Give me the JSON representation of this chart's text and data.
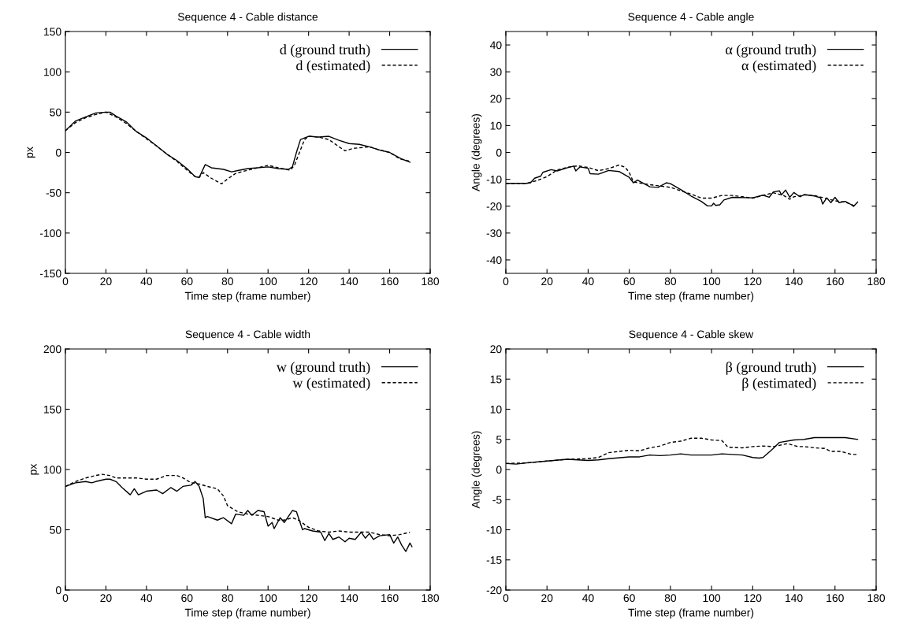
{
  "chart_data": [
    {
      "type": "line",
      "title": "Sequence 4 - Cable distance",
      "xlabel": "Time step (frame number)",
      "ylabel": "px",
      "xlim": [
        0,
        180
      ],
      "xticks": [
        0,
        20,
        40,
        60,
        80,
        100,
        120,
        140,
        160,
        180
      ],
      "ylim": [
        -150,
        150
      ],
      "yticks": [
        -150,
        -100,
        -50,
        0,
        50,
        100,
        150
      ],
      "legend": "top right",
      "grid": false,
      "series": [
        {
          "name": "d (ground truth)",
          "color": "#000000",
          "line_style": "solid",
          "x": [
            0,
            5,
            10,
            15,
            20,
            22,
            25,
            30,
            35,
            40,
            45,
            50,
            55,
            60,
            64,
            66,
            69,
            72,
            78,
            82,
            86,
            90,
            100,
            105,
            110,
            112,
            114,
            116,
            120,
            125,
            130,
            135,
            140,
            145,
            150,
            155,
            160,
            165,
            170
          ],
          "values": [
            27,
            39,
            44,
            49,
            50,
            50,
            45,
            38,
            26,
            18,
            8,
            -2,
            -10,
            -20,
            -30,
            -31,
            -15,
            -19,
            -21,
            -24,
            -22,
            -20,
            -18,
            -20,
            -21,
            -18,
            0,
            16,
            20,
            19,
            20,
            15,
            11,
            10,
            7,
            3,
            0,
            -7,
            -12
          ]
        },
        {
          "name": "d (estimated)",
          "color": "#000000",
          "line_style": "dashed",
          "x": [
            0,
            5,
            10,
            15,
            20,
            25,
            30,
            35,
            40,
            45,
            50,
            55,
            60,
            64,
            66,
            68,
            72,
            77,
            80,
            84,
            90,
            100,
            105,
            111,
            113,
            118,
            120,
            125,
            130,
            135,
            138,
            142,
            150,
            155,
            160,
            165,
            170
          ],
          "values": [
            27,
            37,
            43,
            47,
            50,
            44,
            36,
            26,
            17,
            8,
            -2,
            -11,
            -22,
            -30,
            -31,
            -25,
            -32,
            -39,
            -33,
            -26,
            -22,
            -16,
            -19,
            -22,
            -16,
            16,
            20,
            19,
            16,
            7,
            2,
            5,
            7,
            3,
            0,
            -8,
            -11
          ]
        }
      ]
    },
    {
      "type": "line",
      "title": "Sequence 4 - Cable angle",
      "xlabel": "Time step (frame number)",
      "ylabel": "Angle (degrees)",
      "xlim": [
        0,
        180
      ],
      "xticks": [
        0,
        20,
        40,
        60,
        80,
        100,
        120,
        140,
        160,
        180
      ],
      "ylim": [
        -45,
        45
      ],
      "yticks": [
        -40,
        -30,
        -20,
        -10,
        0,
        10,
        20,
        30,
        40
      ],
      "legend": "top right",
      "grid": false,
      "series": [
        {
          "name": "α (ground truth)",
          "color": "#000000",
          "line_style": "solid",
          "x": [
            0,
            10,
            12,
            14,
            17,
            18,
            22,
            25,
            30,
            33,
            34,
            36,
            40,
            41,
            45,
            50,
            55,
            60,
            62,
            64,
            70,
            74,
            78,
            80,
            85,
            90,
            95,
            98,
            100,
            101,
            102,
            104,
            106,
            110,
            120,
            125,
            128,
            130,
            133,
            134,
            136,
            138,
            140,
            143,
            145,
            150,
            153,
            154,
            156,
            158,
            160,
            162,
            165,
            168,
            169,
            171
          ],
          "values": [
            -11.5,
            -11.5,
            -11.3,
            -9.6,
            -8.8,
            -7.4,
            -6.4,
            -6.9,
            -5.7,
            -5.1,
            -6.9,
            -5.4,
            -5.9,
            -7.9,
            -8.1,
            -6.7,
            -7.1,
            -9.3,
            -11.3,
            -10.3,
            -12.8,
            -13,
            -11.3,
            -11.6,
            -13.8,
            -16.2,
            -18.2,
            -19.9,
            -19.9,
            -18.9,
            -19.7,
            -19.5,
            -17.7,
            -16.7,
            -16.9,
            -15.9,
            -16.7,
            -14.7,
            -14.3,
            -15.8,
            -14,
            -16.7,
            -14.9,
            -16.5,
            -15.7,
            -16.2,
            -16.9,
            -19.2,
            -16.9,
            -18.7,
            -16.7,
            -18.7,
            -18.2,
            -19.5,
            -20.1,
            -18.5
          ]
        },
        {
          "name": "α (estimated)",
          "color": "#000000",
          "line_style": "dashed",
          "x": [
            0,
            10,
            15,
            20,
            25,
            30,
            35,
            40,
            45,
            50,
            55,
            58,
            60,
            62,
            70,
            80,
            90,
            95,
            100,
            105,
            110,
            120,
            130,
            135,
            138,
            140,
            145,
            150,
            155,
            160,
            165,
            170
          ],
          "values": [
            -11.5,
            -11.5,
            -10.5,
            -9,
            -6.5,
            -5.5,
            -5,
            -5.6,
            -6.8,
            -6,
            -4.7,
            -5.5,
            -7.5,
            -11,
            -12,
            -13,
            -15.5,
            -17,
            -17,
            -16,
            -16,
            -17,
            -15,
            -16,
            -17.4,
            -16.5,
            -15.8,
            -16,
            -17,
            -18,
            -18.5,
            -20
          ]
        }
      ]
    },
    {
      "type": "line",
      "title": "Sequence 4 - Cable width",
      "xlabel": "Time step (frame number)",
      "ylabel": "px",
      "xlim": [
        0,
        180
      ],
      "xticks": [
        0,
        20,
        40,
        60,
        80,
        100,
        120,
        140,
        160,
        180
      ],
      "ylim": [
        0,
        200
      ],
      "yticks": [
        0,
        50,
        100,
        150,
        200
      ],
      "legend": "top right",
      "grid": false,
      "series": [
        {
          "name": "w (ground truth)",
          "color": "#000000",
          "line_style": "solid",
          "x": [
            0,
            5,
            10,
            13,
            15,
            20,
            22,
            25,
            28,
            32,
            34,
            36,
            40,
            45,
            48,
            52,
            55,
            58,
            62,
            64,
            66,
            68,
            69,
            70,
            75,
            78,
            82,
            84,
            88,
            90,
            92,
            95,
            98,
            100,
            102,
            103,
            106,
            108,
            112,
            114,
            117,
            118,
            122,
            126,
            128,
            130,
            132,
            135,
            138,
            140,
            143,
            146,
            148,
            150,
            152,
            155,
            160,
            162,
            164,
            166,
            168,
            170,
            171
          ],
          "values": [
            86,
            89,
            90,
            89,
            90,
            92,
            92,
            90,
            85,
            79,
            84,
            79,
            82,
            83,
            80,
            85,
            82,
            86,
            87,
            90,
            86,
            76,
            60,
            61,
            58,
            60,
            55,
            63,
            62,
            66,
            62,
            66,
            65,
            53,
            56,
            51,
            60,
            56,
            66,
            65,
            50,
            51,
            49,
            48,
            41,
            47,
            42,
            44,
            40,
            43,
            42,
            48,
            43,
            47,
            42,
            45,
            46,
            39,
            44,
            37,
            32,
            39,
            36
          ]
        },
        {
          "name": "w (estimated)",
          "color": "#000000",
          "line_style": "dashed",
          "x": [
            0,
            5,
            10,
            15,
            18,
            22,
            25,
            30,
            35,
            40,
            45,
            50,
            55,
            58,
            62,
            66,
            70,
            75,
            78,
            80,
            85,
            90,
            95,
            100,
            105,
            108,
            112,
            115,
            120,
            125,
            130,
            135,
            140,
            145,
            150,
            155,
            160,
            165,
            170
          ],
          "values": [
            86,
            90,
            93,
            95,
            96,
            95,
            93,
            93,
            93,
            92,
            92,
            95,
            95,
            93,
            89,
            88,
            86,
            84,
            78,
            70,
            65,
            63,
            62,
            61,
            58,
            58,
            60,
            58,
            52,
            49,
            48,
            49,
            48,
            48,
            48,
            46,
            45,
            46,
            48
          ]
        }
      ]
    },
    {
      "type": "line",
      "title": "Sequence 4 - Cable skew",
      "xlabel": "Time step (frame number)",
      "ylabel": "Angle (degrees)",
      "xlim": [
        0,
        180
      ],
      "xticks": [
        0,
        20,
        40,
        60,
        80,
        100,
        120,
        140,
        160,
        180
      ],
      "ylim": [
        -20,
        20
      ],
      "yticks": [
        -20,
        -15,
        -10,
        -5,
        0,
        5,
        10,
        15,
        20
      ],
      "legend": "top right",
      "grid": false,
      "series": [
        {
          "name": "β (ground truth)",
          "color": "#000000",
          "line_style": "solid",
          "x": [
            0,
            5,
            10,
            20,
            30,
            40,
            45,
            50,
            60,
            65,
            70,
            75,
            80,
            85,
            90,
            100,
            105,
            110,
            115,
            120,
            123,
            125,
            130,
            133,
            140,
            145,
            150,
            160,
            165,
            171
          ],
          "values": [
            1,
            0.9,
            1.1,
            1.4,
            1.7,
            1.5,
            1.6,
            1.8,
            2.1,
            2.1,
            2.4,
            2.3,
            2.4,
            2.6,
            2.4,
            2.4,
            2.6,
            2.5,
            2.4,
            2,
            1.9,
            2,
            3.5,
            4.5,
            4.9,
            5,
            5.3,
            5.3,
            5.3,
            5
          ]
        },
        {
          "name": "β (estimated)",
          "color": "#000000",
          "line_style": "dashed",
          "x": [
            0,
            10,
            20,
            30,
            40,
            45,
            50,
            55,
            60,
            65,
            70,
            75,
            80,
            85,
            90,
            95,
            100,
            105,
            108,
            115,
            120,
            125,
            130,
            137,
            142,
            145,
            150,
            155,
            158,
            163,
            168,
            171
          ],
          "values": [
            1,
            1.1,
            1.4,
            1.7,
            1.8,
            2,
            2.8,
            3,
            3.2,
            3.1,
            3.6,
            3.9,
            4.5,
            4.7,
            5.2,
            5.2,
            4.9,
            4.8,
            3.7,
            3.6,
            3.8,
            3.9,
            3.8,
            4.3,
            3.8,
            3.8,
            3.6,
            3.5,
            3,
            3,
            2.5,
            2.5
          ]
        }
      ]
    }
  ]
}
